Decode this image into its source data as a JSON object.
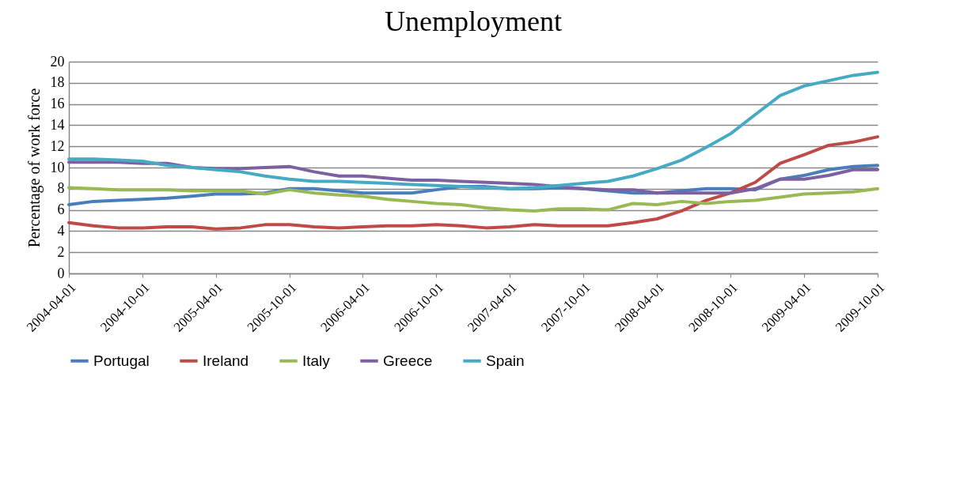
{
  "chart_data": {
    "type": "line",
    "title": "Unemployment",
    "ylabel": "Percentage of work force",
    "x": [
      "2004-04-01",
      "2004-06-01",
      "2004-08-01",
      "2004-10-01",
      "2004-12-01",
      "2005-02-01",
      "2005-04-01",
      "2005-06-01",
      "2005-08-01",
      "2005-10-01",
      "2005-12-01",
      "2006-02-01",
      "2006-04-01",
      "2006-06-01",
      "2006-08-01",
      "2006-10-01",
      "2006-12-01",
      "2007-02-01",
      "2007-04-01",
      "2007-06-01",
      "2007-08-01",
      "2007-10-01",
      "2007-12-01",
      "2008-02-01",
      "2008-04-01",
      "2008-06-01",
      "2008-08-01",
      "2008-10-01",
      "2008-12-01",
      "2009-02-01",
      "2009-04-01",
      "2009-06-01",
      "2009-08-01",
      "2009-10-01"
    ],
    "series": [
      {
        "name": "Portugal",
        "color": "#4a7ebb",
        "values": [
          6.5,
          6.8,
          6.9,
          7.0,
          7.1,
          7.3,
          7.5,
          7.5,
          7.6,
          8.0,
          8.0,
          7.8,
          7.6,
          7.6,
          7.6,
          7.9,
          8.2,
          8.2,
          8.0,
          8.0,
          8.1,
          8.0,
          7.8,
          7.6,
          7.6,
          7.8,
          8.0,
          8.0,
          7.9,
          8.9,
          9.25,
          9.8,
          10.1,
          10.2
        ]
      },
      {
        "name": "Ireland",
        "color": "#be4b48",
        "values": [
          4.8,
          4.5,
          4.3,
          4.3,
          4.4,
          4.4,
          4.2,
          4.3,
          4.6,
          4.6,
          4.4,
          4.3,
          4.4,
          4.5,
          4.5,
          4.6,
          4.5,
          4.3,
          4.4,
          4.6,
          4.5,
          4.5,
          4.5,
          4.8,
          5.15,
          5.9,
          6.9,
          7.6,
          8.6,
          10.4,
          11.2,
          12.1,
          12.4,
          12.9
        ]
      },
      {
        "name": "Italy",
        "color": "#98b954",
        "values": [
          8.1,
          8.0,
          7.9,
          7.9,
          7.9,
          7.8,
          7.8,
          7.8,
          7.5,
          7.9,
          7.6,
          7.4,
          7.3,
          7.0,
          6.8,
          6.6,
          6.5,
          6.2,
          6.0,
          5.9,
          6.1,
          6.1,
          6.0,
          6.6,
          6.5,
          6.8,
          6.6,
          6.8,
          6.9,
          7.2,
          7.5,
          7.6,
          7.7,
          8.0
        ]
      },
      {
        "name": "Greece",
        "color": "#7d60a0",
        "values": [
          10.5,
          10.5,
          10.5,
          10.4,
          10.4,
          10.0,
          9.9,
          9.9,
          10.0,
          10.1,
          9.6,
          9.2,
          9.2,
          9.0,
          8.8,
          8.8,
          8.7,
          8.6,
          8.5,
          8.4,
          8.2,
          8.0,
          7.9,
          7.9,
          7.6,
          7.6,
          7.6,
          7.6,
          8.0,
          8.9,
          8.9,
          9.25,
          9.8,
          9.8
        ]
      },
      {
        "name": "Spain",
        "color": "#46aac5",
        "values": [
          10.8,
          10.8,
          10.7,
          10.6,
          10.2,
          10.0,
          9.8,
          9.6,
          9.2,
          8.9,
          8.7,
          8.7,
          8.6,
          8.5,
          8.4,
          8.3,
          8.2,
          8.1,
          8.0,
          8.1,
          8.3,
          8.5,
          8.7,
          9.2,
          9.9,
          10.7,
          11.9,
          13.2,
          15.0,
          16.8,
          17.7,
          18.2,
          18.7,
          19.0
        ]
      }
    ],
    "xlim": [
      "2004-04-01",
      "2009-10-01"
    ],
    "xticks": [
      "2004-04-01",
      "2004-10-01",
      "2005-04-01",
      "2005-10-01",
      "2006-04-01",
      "2006-10-01",
      "2007-04-01",
      "2007-10-01",
      "2008-04-01",
      "2008-10-01",
      "2009-04-01",
      "2009-10-01"
    ],
    "ylim": [
      0,
      20
    ],
    "yticks": [
      0,
      2,
      4,
      6,
      8,
      10,
      12,
      14,
      16,
      18,
      20
    ],
    "grid": "y",
    "legend": "bottom"
  }
}
